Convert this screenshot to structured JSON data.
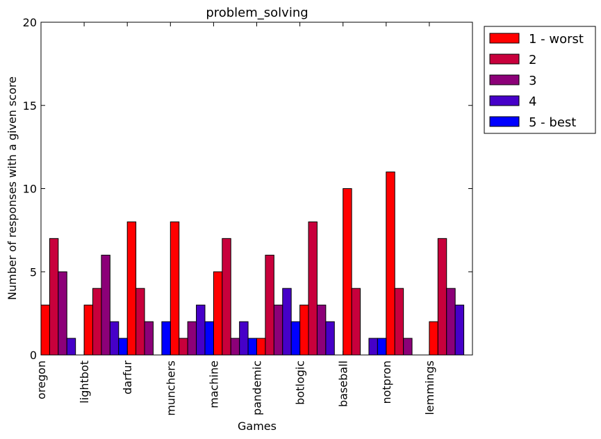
{
  "chart_data": {
    "type": "bar",
    "title": "problem_solving",
    "xlabel": "Games",
    "ylabel": "Number of responses with a given score",
    "ylim": [
      0,
      20
    ],
    "yticks": [
      0,
      5,
      10,
      15,
      20
    ],
    "grid": false,
    "legend_placement": "outside-top-right",
    "categories": [
      "oregon",
      "lightbot",
      "darfur",
      "munchers",
      "machine",
      "pandemic",
      "botlogic",
      "baseball",
      "notpron",
      "lemmings"
    ],
    "series": [
      {
        "name": "1 - worst",
        "color": "#ff0000",
        "values": [
          3,
          3,
          8,
          8,
          5,
          1,
          3,
          10,
          11,
          2
        ]
      },
      {
        "name": "2",
        "color": "#c8003c",
        "values": [
          7,
          4,
          4,
          1,
          7,
          6,
          8,
          4,
          4,
          7
        ]
      },
      {
        "name": "3",
        "color": "#8c0078",
        "values": [
          5,
          6,
          2,
          2,
          1,
          3,
          3,
          0,
          1,
          4
        ]
      },
      {
        "name": "4",
        "color": "#4600c8",
        "values": [
          1,
          2,
          0,
          3,
          2,
          4,
          2,
          1,
          0,
          3
        ]
      },
      {
        "name": "5 - best",
        "color": "#0000ff",
        "values": [
          0,
          1,
          2,
          2,
          1,
          2,
          0,
          1,
          0,
          0
        ]
      }
    ]
  }
}
